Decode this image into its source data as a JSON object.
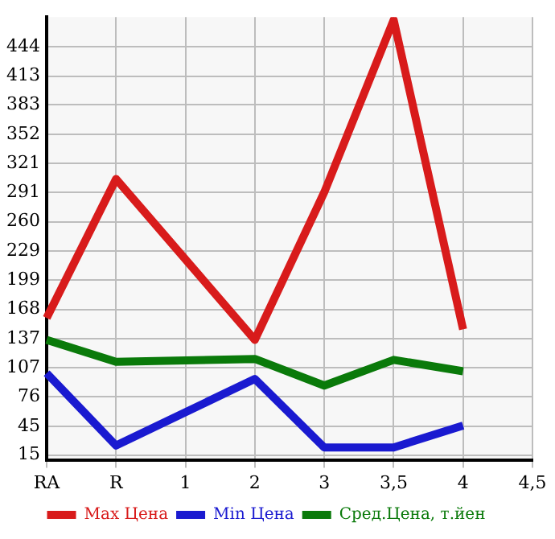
{
  "chart_data": {
    "type": "line",
    "categories": [
      "RA",
      "R",
      "1",
      "2",
      "3",
      "3,5",
      "4",
      "4,5"
    ],
    "series": [
      {
        "name": "Max Цена",
        "color": "#d81b1b",
        "values": [
          159,
          305,
          null,
          136,
          291,
          472,
          147,
          null
        ]
      },
      {
        "name": "Min Цена",
        "color": "#1a1ad0",
        "values": [
          101,
          25,
          null,
          95,
          23,
          23,
          46,
          null
        ]
      },
      {
        "name": "Сред.Цена, т.йен",
        "color": "#0a7a0a",
        "values": [
          136,
          113,
          null,
          116,
          88,
          115,
          103,
          null
        ]
      }
    ],
    "ylim": [
      10,
      475
    ],
    "yticks": [
      15,
      45,
      76,
      107,
      137,
      168,
      199,
      229,
      260,
      291,
      321,
      352,
      383,
      413,
      444
    ],
    "grid": true,
    "legend": "bottom",
    "marker": "none",
    "line_style": "solid"
  }
}
